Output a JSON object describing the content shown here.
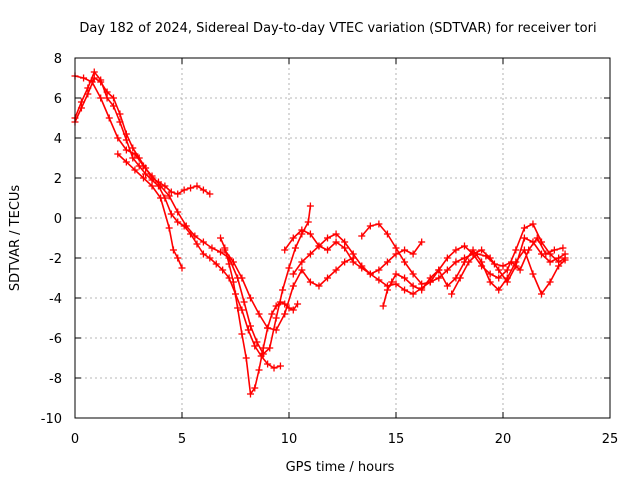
{
  "chart_data": {
    "type": "scatter",
    "title": "Day 182 of 2024, Sidereal Day-to-day VTEC variation (SDTVAR) for receiver tori",
    "xlabel": "GPS time / hours",
    "ylabel": "SDTVAR / TECUs",
    "xlim": [
      0,
      25
    ],
    "ylim": [
      -10,
      8
    ],
    "xticks": [
      "0",
      "5",
      "10",
      "15",
      "20",
      "25"
    ],
    "yticks": [
      "8",
      "6",
      "4",
      "2",
      "0",
      "-2",
      "-4",
      "-6",
      "-8",
      "-10"
    ],
    "grid": true,
    "marker": "plus",
    "color": "#ff0000",
    "series": [
      {
        "x": [
          0.0,
          0.3,
          0.6,
          0.9,
          1.2,
          1.5,
          1.8,
          2.1,
          2.4,
          2.7,
          3.0,
          3.3,
          3.6,
          3.9,
          4.2,
          4.5,
          4.8,
          5.1,
          5.4,
          5.7,
          6.0,
          6.3
        ],
        "y": [
          4.8,
          5.5,
          6.2,
          7.0,
          6.8,
          6.3,
          6.0,
          5.2,
          4.2,
          3.5,
          3.0,
          2.5,
          2.0,
          1.8,
          1.6,
          1.3,
          1.2,
          1.4,
          1.5,
          1.6,
          1.4,
          1.2
        ]
      },
      {
        "x": [
          0.0,
          0.3,
          0.6,
          0.9,
          1.2,
          1.5,
          1.8,
          2.1,
          2.4,
          2.7,
          3.0,
          3.3,
          3.6,
          3.9,
          4.2,
          4.5,
          4.8,
          5.1,
          5.4,
          5.7,
          6.0,
          6.3,
          6.6,
          6.9,
          7.2,
          7.5,
          7.8,
          8.1,
          8.4,
          8.7,
          9.0,
          9.3,
          9.6
        ],
        "y": [
          5.0,
          5.8,
          6.5,
          7.3,
          6.9,
          6.0,
          5.6,
          4.8,
          3.9,
          3.0,
          2.6,
          2.2,
          1.9,
          1.6,
          1.0,
          0.2,
          -0.2,
          -0.4,
          -0.8,
          -1.3,
          -1.8,
          -2.0,
          -2.3,
          -2.6,
          -3.0,
          -3.8,
          -4.6,
          -5.6,
          -6.4,
          -6.9,
          -7.3,
          -7.5,
          -7.4
        ]
      },
      {
        "x": [
          0.0,
          0.4,
          0.8,
          1.2,
          1.6,
          2.0,
          2.4,
          2.8,
          3.2,
          3.6,
          4.0,
          4.4,
          4.8,
          5.2,
          5.6,
          6.0,
          6.4,
          6.8,
          7.2,
          7.6,
          7.9,
          8.2,
          8.5,
          8.8,
          9.1,
          9.4,
          9.7,
          10.0,
          10.3,
          10.6,
          10.9,
          11.0
        ],
        "y": [
          7.1,
          7.0,
          6.8,
          6.0,
          5.0,
          4.0,
          3.4,
          3.2,
          2.6,
          2.1,
          1.6,
          1.1,
          0.3,
          -0.4,
          -0.9,
          -1.2,
          -1.5,
          -1.7,
          -2.0,
          -3.0,
          -4.2,
          -5.4,
          -6.2,
          -6.8,
          -6.5,
          -5.0,
          -3.6,
          -2.5,
          -1.5,
          -0.8,
          -0.2,
          0.6
        ]
      },
      {
        "x": [
          2.0,
          2.4,
          2.8,
          3.2,
          3.6,
          4.0,
          4.4,
          4.6,
          4.8,
          5.0
        ],
        "y": [
          3.2,
          2.8,
          2.4,
          2.0,
          1.6,
          1.0,
          -0.5,
          -1.6,
          -2.0,
          -2.5
        ]
      },
      {
        "x": [
          6.8,
          7.0,
          7.2,
          7.4,
          7.6,
          7.8,
          8.0,
          8.2,
          8.4,
          8.6,
          8.8,
          9.0,
          9.2,
          9.4,
          9.6,
          9.8,
          10.0,
          10.2,
          10.4
        ],
        "y": [
          -1.0,
          -1.5,
          -2.3,
          -3.2,
          -4.5,
          -5.8,
          -7.0,
          -8.8,
          -8.5,
          -7.6,
          -6.5,
          -5.5,
          -4.8,
          -4.4,
          -4.2,
          -4.3,
          -4.5,
          -4.6,
          -4.3
        ]
      },
      {
        "x": [
          7.0,
          7.4,
          7.8,
          8.2,
          8.6,
          9.0,
          9.4,
          9.8,
          10.2,
          10.6,
          11.0,
          11.4,
          11.8,
          12.2,
          12.6,
          13.0
        ],
        "y": [
          -1.6,
          -2.2,
          -3.0,
          -4.0,
          -4.8,
          -5.5,
          -5.6,
          -4.8,
          -3.4,
          -2.6,
          -3.2,
          -3.4,
          -3.0,
          -2.6,
          -2.2,
          -2.0
        ]
      },
      {
        "x": [
          9.8,
          10.2,
          10.6,
          11.0,
          11.4,
          11.8,
          12.2,
          12.6,
          13.0,
          13.4,
          13.8,
          14.2,
          14.6,
          15.0,
          15.4,
          15.8,
          16.2,
          16.6,
          17.0,
          17.4,
          17.8,
          18.2,
          18.6,
          19.0,
          19.4,
          19.8,
          20.2,
          20.6,
          21.0,
          21.4,
          21.8,
          22.2,
          22.6,
          22.9
        ],
        "y": [
          -1.6,
          -1.0,
          -0.6,
          -0.8,
          -1.4,
          -1.6,
          -1.2,
          -1.5,
          -2.2,
          -2.5,
          -2.8,
          -3.1,
          -3.4,
          -3.3,
          -3.6,
          -3.8,
          -3.5,
          -3.2,
          -3.0,
          -2.6,
          -2.2,
          -2.0,
          -1.8,
          -1.6,
          -2.0,
          -2.6,
          -3.2,
          -2.4,
          -1.0,
          -1.2,
          -1.8,
          -2.2,
          -2.0,
          -1.8
        ]
      },
      {
        "x": [
          10.2,
          10.6,
          11.0,
          11.4,
          11.8,
          12.2,
          12.6,
          13.0,
          13.4,
          13.8,
          14.2,
          14.6,
          15.0,
          15.4,
          15.8,
          16.2
        ],
        "y": [
          -2.8,
          -2.2,
          -1.8,
          -1.4,
          -1.0,
          -0.8,
          -1.2,
          -1.8,
          -2.4,
          -2.8,
          -2.6,
          -2.2,
          -1.8,
          -1.6,
          -1.8,
          -1.2
        ]
      },
      {
        "x": [
          13.4,
          13.8,
          14.2,
          14.6,
          15.0,
          15.4,
          15.8,
          16.2,
          16.6,
          17.0,
          17.4,
          17.8,
          18.2,
          18.6,
          19.0,
          19.4,
          19.8,
          20.2,
          20.6,
          21.0,
          21.4,
          21.8,
          22.2,
          22.6,
          22.9
        ],
        "y": [
          -0.9,
          -0.4,
          -0.3,
          -0.8,
          -1.5,
          -2.2,
          -2.8,
          -3.3,
          -3.2,
          -2.6,
          -2.0,
          -1.6,
          -1.4,
          -1.8,
          -2.4,
          -2.8,
          -3.0,
          -2.6,
          -1.6,
          -0.5,
          -0.3,
          -1.2,
          -1.8,
          -2.2,
          -2.0
        ]
      },
      {
        "x": [
          14.4,
          14.6,
          14.8,
          15.0,
          15.4,
          15.8,
          16.2,
          16.6,
          17.0,
          17.4,
          17.8,
          18.2,
          18.6,
          19.0,
          19.4,
          19.8,
          20.2,
          20.6,
          21.0,
          21.4,
          21.8,
          22.2,
          22.6,
          22.9
        ],
        "y": [
          -4.4,
          -3.6,
          -3.2,
          -2.8,
          -3.0,
          -3.4,
          -3.6,
          -3.0,
          -2.6,
          -3.4,
          -3.0,
          -2.2,
          -1.6,
          -2.2,
          -3.2,
          -3.6,
          -3.0,
          -2.2,
          -1.6,
          -2.8,
          -3.8,
          -3.2,
          -2.4,
          -2.1
        ]
      },
      {
        "x": [
          17.6,
          18.0,
          18.4,
          18.8,
          19.2,
          19.6,
          20.0,
          20.4,
          20.8,
          21.2,
          21.6,
          22.0,
          22.4,
          22.8
        ],
        "y": [
          -3.8,
          -3.0,
          -2.2,
          -1.8,
          -1.9,
          -2.3,
          -2.4,
          -2.2,
          -2.6,
          -1.6,
          -1.0,
          -1.8,
          -1.6,
          -1.5
        ]
      }
    ]
  }
}
